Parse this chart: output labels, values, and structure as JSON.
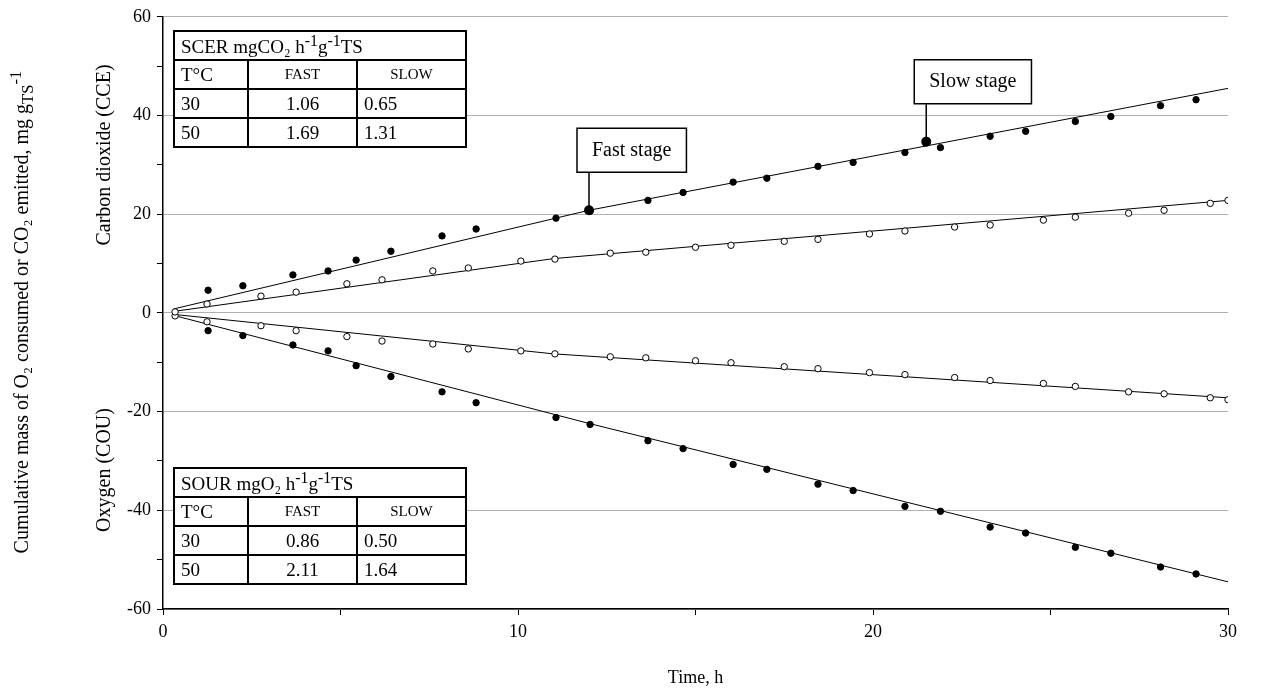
{
  "chart_data": {
    "type": "scatter",
    "xlabel": "Time, h",
    "ylabel": "Cumulative mass of O₂ consumed or CO₂ emitted, mg g$_{TS}$$^{-1}$",
    "xlim": [
      0,
      30
    ],
    "xticks": [
      0,
      {
        "value": 5,
        "label": null
      },
      10,
      {
        "value": 15,
        "label": null
      },
      20,
      {
        "value": 25,
        "label": null
      },
      30
    ],
    "ylim": [
      -60,
      60
    ],
    "yticks": [
      -60,
      {
        "value": -50,
        "label": null
      },
      -40,
      {
        "value": -30,
        "label": null
      },
      -20,
      {
        "value": -10,
        "label": null
      },
      0,
      {
        "value": 10,
        "label": null
      },
      20,
      {
        "value": 30,
        "label": null
      },
      40,
      {
        "value": 50,
        "label": null
      },
      60
    ],
    "grid": "y",
    "marker": "circle",
    "legend": false,
    "series": [
      {
        "color": "#000000",
        "x": [
          1.27,
          2.25,
          3.66,
          4.65,
          5.44,
          6.42,
          7.86,
          8.82,
          11.07,
          12.03,
          13.66,
          14.65,
          16.06,
          17.01,
          18.45,
          19.44,
          20.9,
          21.9,
          23.3,
          24.3,
          25.7,
          26.7,
          28.1,
          29.1
        ],
        "values": [
          4.6,
          5.5,
          7.7,
          8.5,
          10.7,
          12.5,
          15.6,
          17,
          19.2,
          20.6,
          22.8,
          24.4,
          26.5,
          27.3,
          29.7,
          30.5,
          32.5,
          33.5,
          35.8,
          36.8,
          38.8,
          39.8,
          42,
          43.2
        ]
      },
      {
        "color": "#ffffff",
        "x": [
          0.34,
          1.24,
          2.76,
          3.75,
          5.18,
          6.17,
          7.6,
          8.6,
          10.08,
          11.04,
          12.6,
          13.6,
          15,
          16,
          17.5,
          18.45,
          19.9,
          20.9,
          22.3,
          23.3,
          24.8,
          25.7,
          27.2,
          28.2,
          29.5,
          30
        ],
        "values": [
          0.2,
          1.8,
          3.4,
          4.2,
          5.9,
          6.7,
          8.5,
          9.1,
          10.5,
          10.9,
          12.1,
          12.3,
          13.3,
          13.7,
          14.5,
          14.9,
          16,
          16.6,
          17.4,
          17.8,
          18.8,
          19.4,
          20.2,
          20.8,
          22.2,
          22.8
        ]
      },
      {
        "color": "#ffffff",
        "x": [
          0.34,
          1.24,
          2.76,
          3.75,
          5.18,
          6.17,
          7.6,
          8.6,
          10.08,
          11.04,
          12.6,
          13.6,
          15,
          16,
          17.5,
          18.45,
          19.9,
          20.9,
          22.3,
          23.3,
          24.8,
          25.7,
          27.2,
          28.2,
          29.5,
          30
        ],
        "values": [
          -0.6,
          -1.8,
          -2.6,
          -3.6,
          -4.8,
          -5.7,
          -6.3,
          -7.3,
          -7.7,
          -8.3,
          -8.9,
          -9.1,
          -9.7,
          -10.1,
          -10.9,
          -11.3,
          -12.1,
          -12.5,
          -13.1,
          -13.7,
          -14.3,
          -14.9,
          -16,
          -16.4,
          -17.2,
          -17.6
        ]
      },
      {
        "color": "#000000",
        "x": [
          1.27,
          2.25,
          3.66,
          4.65,
          5.44,
          6.42,
          7.86,
          8.82,
          11.07,
          12.03,
          13.66,
          14.65,
          16.06,
          17.01,
          18.45,
          19.44,
          20.9,
          21.9,
          23.3,
          24.3,
          25.7,
          26.7,
          28.1,
          29.1
        ],
        "values": [
          -3.6,
          -4.6,
          -6.5,
          -7.7,
          -10.7,
          -12.9,
          -16,
          -18.2,
          -21.2,
          -22.6,
          -25.9,
          -27.5,
          -30.7,
          -31.7,
          -34.7,
          -36,
          -39.2,
          -40.2,
          -43.4,
          -44.6,
          -47.5,
          -48.7,
          -51.5,
          -52.9
        ]
      },
      {
        "type": "line",
        "marker": "none",
        "color": "#000000",
        "x": [
          0.3,
          12,
          30
        ],
        "values": [
          0.8,
          20.8,
          45.5
        ]
      },
      {
        "type": "line",
        "marker": "none",
        "color": "#000000",
        "x": [
          0.3,
          11,
          30
        ],
        "values": [
          0.3,
          11,
          22.8
        ]
      },
      {
        "type": "line",
        "marker": "none",
        "color": "#000000",
        "x": [
          0.3,
          11,
          30
        ],
        "values": [
          -0.3,
          -8.3,
          -17.2
        ]
      },
      {
        "type": "line",
        "marker": "none",
        "color": "#000000",
        "x": [
          0.3,
          12,
          30
        ],
        "values": [
          -0.5,
          -22.4,
          -54.5
        ]
      }
    ],
    "annotations": [
      {
        "text": "Fast stage",
        "x": 12,
        "y": 20.8
      },
      {
        "text": "Slow stage",
        "x": 21.5,
        "y": 34.7
      },
      "Carbon dioxide (CCE)",
      "Oxygen (COU)",
      "SCER mgCO₂ h$^{-1}$g$^{-1}$TS",
      "T°C",
      "FAST",
      "SLOW",
      "30",
      "1.06",
      "0.65",
      "50",
      "1.69",
      "1.31",
      "SOUR mgO₂ h$^{-1}$g$^{-1}$TS",
      "T°C",
      "FAST",
      "SLOW",
      "30",
      "0.86",
      "0.50",
      "50",
      "2.11",
      "1.64"
    ]
  }
}
